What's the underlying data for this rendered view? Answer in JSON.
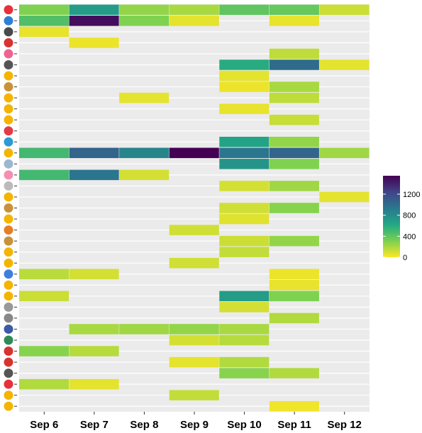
{
  "chart_data": {
    "type": "heatmap",
    "title": "",
    "xlabel": "",
    "ylabel": "",
    "x": [
      "Sep 6",
      "Sep 7",
      "Sep 8",
      "Sep 9",
      "Sep 10",
      "Sep 11",
      "Sep 12"
    ],
    "y_icons": [
      "red-heart-icon",
      "blue-heart-icon",
      "black-heart-suit-icon",
      "fire-extinguisher-icon",
      "pink-hearts-icon",
      "paw-prints-icon",
      "crying-face-icon",
      "dog-face-icon",
      "raising-hands-icon",
      "flexed-biceps-icon",
      "raised-hand-icon",
      "hibiscus-icon",
      "water-wave-icon",
      "folded-hands-icon",
      "cloud-with-rain-icon",
      "pig-face-icon",
      "poodle-icon",
      "pointing-up-icon",
      "dog-icon",
      "hushed-face-icon",
      "basketball-icon",
      "guide-dog-icon",
      "grinning-sweat-icon",
      "downcast-sweat-icon",
      "cyclone-icon",
      "confused-face-icon",
      "worried-face-icon",
      "tornado-icon",
      "latin-cross-icon",
      "us-flag-icon",
      "seychelles-flag-icon",
      "puerto-rico-flag-icon",
      "canada-flag-icon",
      "warning-icon",
      "heart-icon",
      "unamused-face-icon",
      "weary-face-icon"
    ],
    "values": [
      [
        300,
        700,
        250,
        200,
        400,
        380,
        120
      ],
      [
        450,
        1500,
        300,
        60,
        null,
        50,
        null
      ],
      [
        50,
        null,
        null,
        null,
        null,
        null,
        null
      ],
      [
        null,
        40,
        null,
        null,
        null,
        null,
        null
      ],
      [
        null,
        null,
        null,
        null,
        null,
        150,
        null
      ],
      [
        null,
        null,
        null,
        null,
        600,
        1000,
        60
      ],
      [
        null,
        null,
        null,
        null,
        60,
        null,
        null
      ],
      [
        null,
        null,
        null,
        null,
        40,
        200,
        null
      ],
      [
        null,
        null,
        60,
        null,
        null,
        150,
        null
      ],
      [
        null,
        null,
        null,
        null,
        50,
        null,
        null
      ],
      [
        null,
        null,
        null,
        null,
        null,
        130,
        null
      ],
      [
        null,
        null,
        null,
        null,
        null,
        null,
        null
      ],
      [
        null,
        null,
        null,
        null,
        650,
        250,
        null
      ],
      [
        500,
        1050,
        850,
        1600,
        950,
        1050,
        220
      ],
      [
        null,
        null,
        null,
        null,
        750,
        300,
        null
      ],
      [
        500,
        950,
        100,
        null,
        null,
        null,
        null
      ],
      [
        null,
        null,
        null,
        null,
        100,
        220,
        null
      ],
      [
        null,
        null,
        null,
        null,
        null,
        null,
        60
      ],
      [
        null,
        null,
        null,
        null,
        110,
        280,
        null
      ],
      [
        null,
        null,
        null,
        null,
        70,
        null,
        null
      ],
      [
        null,
        null,
        null,
        110,
        null,
        null,
        null
      ],
      [
        null,
        null,
        null,
        null,
        120,
        250,
        null
      ],
      [
        null,
        null,
        null,
        null,
        140,
        null,
        null
      ],
      [
        null,
        null,
        null,
        110,
        null,
        null,
        null
      ],
      [
        160,
        100,
        null,
        null,
        null,
        40,
        null
      ],
      [
        null,
        null,
        null,
        null,
        null,
        50,
        null
      ],
      [
        120,
        null,
        null,
        null,
        700,
        300,
        null
      ],
      [
        null,
        null,
        null,
        null,
        100,
        null,
        null
      ],
      [
        null,
        null,
        null,
        null,
        null,
        180,
        null
      ],
      [
        null,
        200,
        220,
        250,
        200,
        null,
        null
      ],
      [
        null,
        null,
        null,
        100,
        170,
        null,
        null
      ],
      [
        280,
        170,
        null,
        null,
        null,
        null,
        null
      ],
      [
        null,
        null,
        null,
        60,
        180,
        null,
        null
      ],
      [
        null,
        null,
        null,
        null,
        280,
        180,
        null
      ],
      [
        180,
        60,
        null,
        null,
        null,
        null,
        null
      ],
      [
        null,
        null,
        null,
        140,
        null,
        null,
        null
      ],
      [
        null,
        null,
        null,
        null,
        null,
        30,
        null
      ]
    ],
    "colorbar": {
      "range": [
        0,
        1550
      ],
      "ticks": [
        0,
        400,
        800,
        1200
      ],
      "tick_labels": [
        "0",
        "400",
        "800",
        "1200"
      ],
      "colors": [
        "#fde725",
        "#7ad151",
        "#22a884",
        "#2a788e",
        "#414487",
        "#440154"
      ]
    },
    "panel_background": "#ebebeb",
    "grid": true,
    "legend_position": "right"
  }
}
